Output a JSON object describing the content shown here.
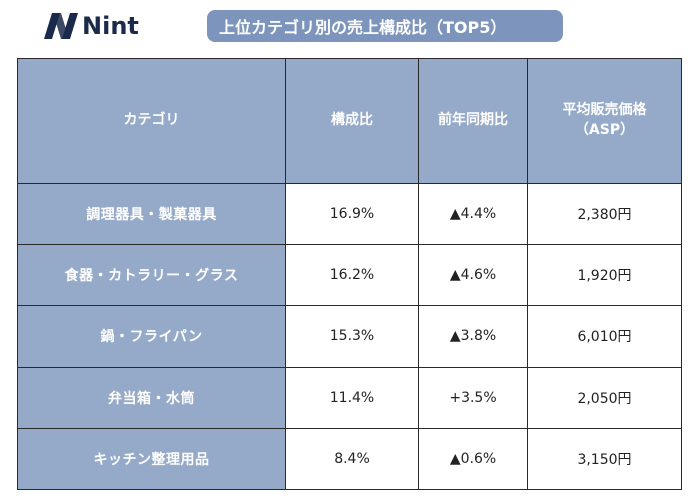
{
  "logo": {
    "text": "Nint"
  },
  "title": "上位カテゴリ別の売上構成比（TOP5）",
  "table": {
    "headers": {
      "category": "カテゴリ",
      "share": "構成比",
      "yoy": "前年同期比",
      "asp_line1": "平均販売価格",
      "asp_line2": "（ASP）"
    },
    "rows": [
      {
        "category": "調理器具・製菓器具",
        "share": "16.9%",
        "yoy": "▲4.4%",
        "asp": "2,380円"
      },
      {
        "category": "食器・カトラリー・グラス",
        "share": "16.2%",
        "yoy": "▲4.6%",
        "asp": "1,920円"
      },
      {
        "category": "鍋・フライパン",
        "share": "15.3%",
        "yoy": "▲3.8%",
        "asp": "6,010円"
      },
      {
        "category": "弁当箱・水筒",
        "share": "11.4%",
        "yoy": "+3.5%",
        "asp": "2,050円"
      },
      {
        "category": "キッチン整理用品",
        "share": "8.4%",
        "yoy": "▲0.6%",
        "asp": "3,150円"
      }
    ]
  },
  "colors": {
    "header_fill": "#95a9c9",
    "title_fill": "#7d95bc",
    "logo_color": "#1b2a4a",
    "border": "#2a2a2a"
  }
}
